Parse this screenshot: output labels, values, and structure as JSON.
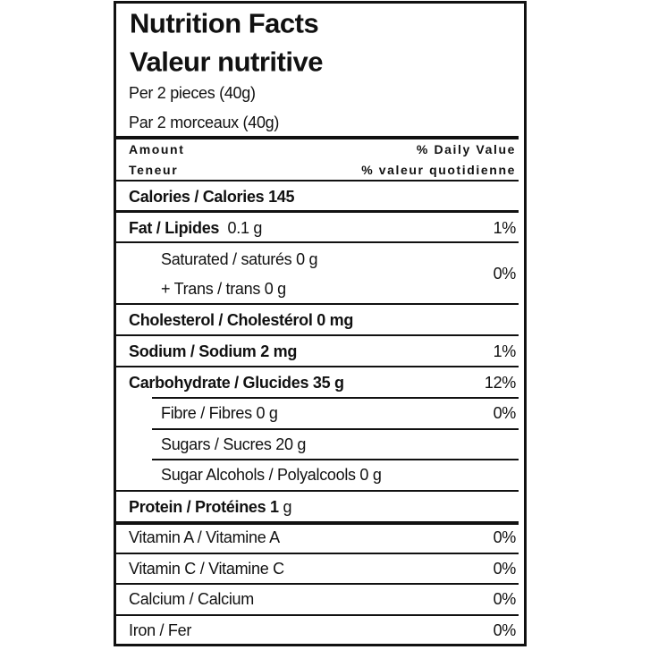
{
  "header": {
    "title": "Nutrition Facts",
    "subtitle": "Valeur nutritive",
    "serving_en": "Per 2 pieces (40g)",
    "serving_fr": "Par 2 morceaux (40g)"
  },
  "columns": {
    "amount": "Amount",
    "teneur": "Teneur",
    "daily_value": "% Daily Value",
    "valeur_quotidienne": "% valeur quotidienne"
  },
  "calories": "Calories / Calories 145",
  "rows": [
    {
      "label": "Fat / Lipides",
      "amount": "0.1 g",
      "dv": "1%"
    },
    {
      "label": "Saturated / saturés 0 g"
    },
    {
      "label": "+ Trans / trans 0 g",
      "dv": "0%"
    },
    {
      "label": "Cholesterol / Cholestérol 0 mg"
    },
    {
      "label": "Sodium / Sodium 2 mg",
      "dv": "1%"
    },
    {
      "label": "Carbohydrate / Glucides 35 g",
      "dv": "12%"
    },
    {
      "label": "Fibre / Fibres 0 g",
      "dv": "0%"
    },
    {
      "label": "Sugars / Sucres 20 g"
    },
    {
      "label": "Sugar Alcohols / Polyalcools 0 g"
    },
    {
      "label": "Protein / Protéines 1",
      "amount": "g"
    }
  ],
  "vitamins": [
    {
      "label": "Vitamin A / Vitamine A",
      "dv": "0%"
    },
    {
      "label": "Vitamin C / Vitamine C",
      "dv": "0%"
    },
    {
      "label": "Calcium / Calcium",
      "dv": "0%"
    },
    {
      "label": "Iron / Fer",
      "dv": "0%"
    }
  ]
}
